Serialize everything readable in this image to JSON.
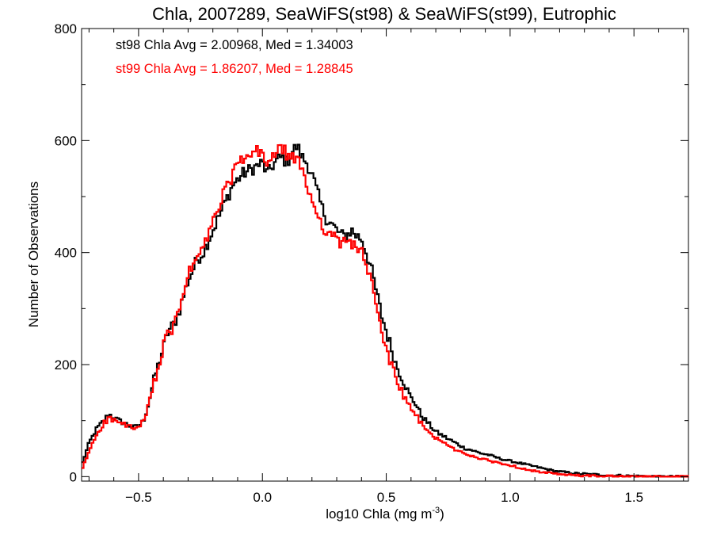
{
  "chart_data": {
    "type": "line",
    "title": "Chla, 2007289, SeaWiFS(st98) & SeaWiFS(st99), Eutrophic",
    "xlabel": "log10 Chla (mg m",
    "xlabel_sup": "-3",
    "xlabel_close": ")",
    "ylabel": "Number of Observations",
    "xlim": [
      -0.73,
      1.72
    ],
    "ylim": [
      -8,
      800
    ],
    "x_ticks": [
      -0.5,
      0.0,
      0.5,
      1.0,
      1.5
    ],
    "x_tick_labels": [
      "−0.5",
      "0.0",
      "0.5",
      "1.0",
      "1.5"
    ],
    "y_ticks": [
      0,
      200,
      400,
      600,
      800
    ],
    "y_tick_labels": [
      "0",
      "200",
      "400",
      "600",
      "800"
    ],
    "grid": false,
    "annotations": [
      {
        "text": "st98 Chla Avg = 2.00968, Med = 1.34003",
        "color": "#000000"
      },
      {
        "text": "st99 Chla Avg = 1.86207, Med = 1.28845",
        "color": "#ff0000"
      }
    ],
    "series": [
      {
        "color": "#000000",
        "x": [
          -0.73,
          -0.7,
          -0.67,
          -0.64,
          -0.62,
          -0.6,
          -0.57,
          -0.54,
          -0.52,
          -0.5,
          -0.48,
          -0.46,
          -0.44,
          -0.42,
          -0.4,
          -0.38,
          -0.36,
          -0.34,
          -0.32,
          -0.3,
          -0.28,
          -0.26,
          -0.24,
          -0.22,
          -0.2,
          -0.18,
          -0.16,
          -0.14,
          -0.12,
          -0.1,
          -0.08,
          -0.06,
          -0.04,
          -0.02,
          0.0,
          0.02,
          0.04,
          0.06,
          0.08,
          0.1,
          0.12,
          0.14,
          0.16,
          0.18,
          0.2,
          0.22,
          0.24,
          0.26,
          0.28,
          0.3,
          0.32,
          0.34,
          0.36,
          0.38,
          0.4,
          0.42,
          0.44,
          0.46,
          0.48,
          0.5,
          0.52,
          0.54,
          0.56,
          0.58,
          0.6,
          0.62,
          0.64,
          0.66,
          0.68,
          0.7,
          0.72,
          0.74,
          0.76,
          0.78,
          0.8,
          0.82,
          0.84,
          0.86,
          0.88,
          0.9,
          0.92,
          0.94,
          0.96,
          0.98,
          1.0,
          1.02,
          1.04,
          1.06,
          1.08,
          1.1,
          1.12,
          1.14,
          1.16,
          1.18,
          1.2,
          1.22,
          1.24,
          1.26,
          1.28,
          1.3,
          1.32,
          1.34,
          1.36,
          1.38,
          1.4,
          1.45,
          1.5,
          1.55,
          1.6,
          1.65,
          1.72
        ],
        "y": [
          20,
          60,
          85,
          100,
          112,
          105,
          98,
          92,
          88,
          90,
          100,
          130,
          170,
          200,
          230,
          260,
          270,
          290,
          320,
          350,
          370,
          390,
          400,
          420,
          440,
          460,
          480,
          500,
          520,
          530,
          540,
          545,
          550,
          555,
          560,
          540,
          555,
          565,
          570,
          560,
          580,
          590,
          570,
          560,
          540,
          510,
          480,
          460,
          450,
          440,
          430,
          430,
          440,
          430,
          425,
          400,
          370,
          330,
          290,
          260,
          230,
          200,
          180,
          160,
          140,
          130,
          110,
          100,
          90,
          80,
          75,
          70,
          65,
          60,
          55,
          50,
          48,
          45,
          42,
          40,
          38,
          35,
          32,
          30,
          28,
          26,
          24,
          22,
          20,
          18,
          16,
          14,
          12,
          10,
          9,
          8,
          7,
          6,
          5,
          5,
          4,
          4,
          3,
          3,
          2,
          2,
          1,
          1,
          0,
          0,
          0
        ],
        "jitter": 12
      },
      {
        "color": "#ff0000",
        "x": [
          -0.73,
          -0.7,
          -0.67,
          -0.64,
          -0.62,
          -0.6,
          -0.57,
          -0.54,
          -0.52,
          -0.5,
          -0.48,
          -0.46,
          -0.44,
          -0.42,
          -0.4,
          -0.38,
          -0.36,
          -0.34,
          -0.32,
          -0.3,
          -0.28,
          -0.26,
          -0.24,
          -0.22,
          -0.2,
          -0.18,
          -0.16,
          -0.14,
          -0.12,
          -0.1,
          -0.08,
          -0.06,
          -0.04,
          -0.02,
          0.0,
          0.02,
          0.04,
          0.06,
          0.08,
          0.1,
          0.12,
          0.14,
          0.16,
          0.18,
          0.2,
          0.22,
          0.24,
          0.26,
          0.28,
          0.3,
          0.32,
          0.34,
          0.36,
          0.38,
          0.4,
          0.42,
          0.44,
          0.46,
          0.48,
          0.5,
          0.52,
          0.54,
          0.56,
          0.58,
          0.6,
          0.62,
          0.64,
          0.66,
          0.68,
          0.7,
          0.72,
          0.74,
          0.76,
          0.78,
          0.8,
          0.82,
          0.84,
          0.86,
          0.88,
          0.9,
          0.92,
          0.94,
          0.96,
          0.98,
          1.0,
          1.02,
          1.04,
          1.06,
          1.08,
          1.1,
          1.12,
          1.14,
          1.16,
          1.18,
          1.2,
          1.22,
          1.24,
          1.26,
          1.28,
          1.3,
          1.32,
          1.34,
          1.36,
          1.38,
          1.4,
          1.45,
          1.5,
          1.55,
          1.6,
          1.65,
          1.72
        ],
        "y": [
          10,
          45,
          75,
          95,
          105,
          100,
          95,
          90,
          85,
          88,
          98,
          125,
          165,
          195,
          230,
          255,
          265,
          290,
          330,
          360,
          375,
          395,
          405,
          430,
          455,
          475,
          500,
          520,
          540,
          555,
          565,
          570,
          575,
          580,
          575,
          560,
          570,
          580,
          585,
          575,
          570,
          565,
          545,
          520,
          495,
          470,
          450,
          440,
          430,
          420,
          415,
          420,
          420,
          410,
          400,
          380,
          345,
          300,
          260,
          230,
          200,
          175,
          155,
          135,
          120,
          110,
          95,
          85,
          75,
          70,
          65,
          58,
          52,
          48,
          44,
          40,
          38,
          35,
          32,
          30,
          28,
          26,
          24,
          22,
          20,
          18,
          16,
          14,
          12,
          10,
          8,
          7,
          6,
          5,
          4,
          3,
          3,
          2,
          2,
          2,
          1,
          1,
          1,
          1,
          1,
          0,
          0,
          0,
          0,
          0,
          0
        ],
        "jitter": 12
      }
    ]
  }
}
